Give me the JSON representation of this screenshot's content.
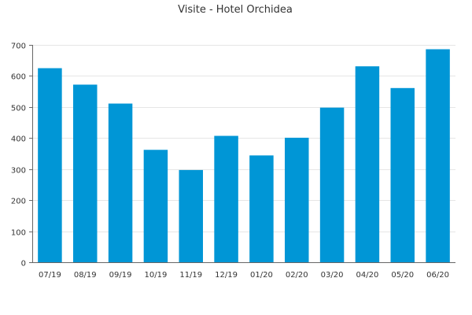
{
  "chart_data": {
    "type": "bar",
    "title": "Visite - Hotel Orchidea",
    "xlabel": "",
    "ylabel": "",
    "categories": [
      "07/19",
      "08/19",
      "09/19",
      "10/19",
      "11/19",
      "12/19",
      "01/20",
      "02/20",
      "03/20",
      "04/20",
      "05/20",
      "06/20"
    ],
    "values": [
      625,
      572,
      511,
      362,
      297,
      407,
      344,
      401,
      498,
      631,
      561,
      686
    ],
    "ylim": [
      0,
      700
    ],
    "yticks": [
      0,
      100,
      200,
      300,
      400,
      500,
      600,
      700
    ],
    "grid": true,
    "legend": "none",
    "colors": {
      "bar": "#0096d6"
    }
  }
}
